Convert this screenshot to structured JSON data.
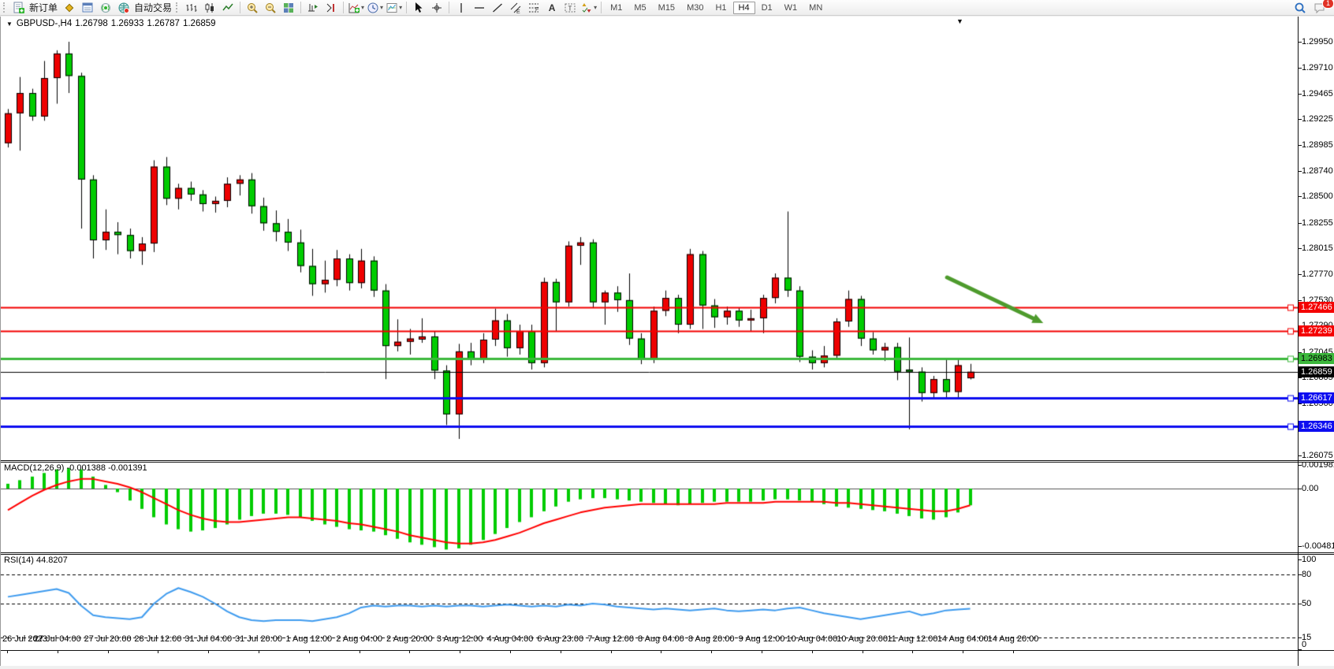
{
  "toolbar": {
    "new_order_label": "新订单",
    "autotrading_label": "自动交易",
    "timeframes": [
      "M1",
      "M5",
      "M15",
      "M30",
      "H1",
      "H4",
      "D1",
      "W1",
      "MN"
    ],
    "active_timeframe": "H4",
    "badge_count": "1",
    "icon_glyphs": {
      "text_tool": "A",
      "vline": "│",
      "hline": "─",
      "trendline": "╱",
      "caret": "▾"
    }
  },
  "chart_header": {
    "menu_glyph": "▼",
    "symbol_period": "GBPUSD-,H4",
    "open": "1.26798",
    "high": "1.26933",
    "low": "1.26787",
    "close": "1.26859",
    "shift_marker_glyph": "▼"
  },
  "panels": {
    "macd_label": "MACD(12,26,9)",
    "macd_values": "-0.001388 -0.001391",
    "rsi_label": "RSI(14)",
    "rsi_value": "44.8207"
  },
  "axes": {
    "price_ticks": [
      "1.29950",
      "1.29710",
      "1.29465",
      "1.29225",
      "1.28985",
      "1.28740",
      "1.28500",
      "1.28255",
      "1.28015",
      "1.27770",
      "1.27530",
      "1.27290",
      "1.27045",
      "1.26805",
      "1.26560",
      "1.26320",
      "1.26075"
    ],
    "macd_ticks": [
      {
        "label": "0.001981",
        "value": 0.001981
      },
      {
        "label": "0.00",
        "value": 0
      },
      {
        "label": "-0.00481",
        "value": -0.00481
      }
    ],
    "rsi_ticks": [
      {
        "label": "100",
        "value": 100,
        "dashed": false
      },
      {
        "label": "80",
        "value": 80,
        "dashed": true
      },
      {
        "label": "50",
        "value": 50,
        "dashed": true
      },
      {
        "label": "15",
        "value": 15,
        "dashed": true
      },
      {
        "label": "0",
        "value": 0,
        "dashed": false
      }
    ],
    "time_labels": [
      "26 Jul 2023",
      "27 Jul 04:00",
      "27 Jul 20:00",
      "28 Jul 12:00",
      "31 Jul 04:00",
      "31 Jul 20:00",
      "1 Aug 12:00",
      "2 Aug 04:00",
      "2 Aug 20:00",
      "3 Aug 12:00",
      "4 Aug 04:00",
      "6 Aug 23:00",
      "7 Aug 12:00",
      "8 Aug 04:00",
      "8 Aug 20:00",
      "9 Aug 12:00",
      "10 Aug 04:00",
      "10 Aug 20:00",
      "11 Aug 12:00",
      "14 Aug 04:00",
      "14 Aug 20:00"
    ]
  },
  "hlines": [
    {
      "price": 1.27466,
      "label": "1.27466",
      "color": "#f40000",
      "text_color": "#ffffff",
      "width": 2,
      "handle": true,
      "role": "resistance"
    },
    {
      "price": 1.27239,
      "label": "1.27239",
      "color": "#f40000",
      "text_color": "#ffffff",
      "width": 2,
      "handle": true,
      "role": "resistance"
    },
    {
      "price": 1.26983,
      "label": "1.26983",
      "color": "#3cb83c",
      "text_color": "#000000",
      "width": 3,
      "handle": true,
      "role": "level"
    },
    {
      "price": 1.26859,
      "label": "1.26859",
      "color": "#000000",
      "text_color": "#ffffff",
      "width": 1,
      "handle": false,
      "role": "bid"
    },
    {
      "price": 1.26617,
      "label": "1.26617",
      "color": "#0d0df0",
      "text_color": "#ffffff",
      "width": 3,
      "handle": true,
      "role": "support"
    },
    {
      "price": 1.26346,
      "label": "1.26346",
      "color": "#0d0df0",
      "text_color": "#ffffff",
      "width": 3,
      "handle": true,
      "role": "support"
    }
  ],
  "chart_data": {
    "type": "candlestick",
    "symbol": "GBPUSD-",
    "timeframe": "H4",
    "title": "GBPUSD-,H4 1.26798 1.26933 1.26787 1.26859",
    "price_range_visible": [
      1.26031,
      1.30186
    ],
    "up_color": "#ee0000",
    "down_color": "#00cc00",
    "outline_color": "#000000",
    "candles": [
      [
        1.29,
        1.2932,
        1.2896,
        1.2928
      ],
      [
        1.2928,
        1.2962,
        1.2893,
        1.2947
      ],
      [
        1.2947,
        1.2951,
        1.2921,
        1.2925
      ],
      [
        1.2925,
        1.2977,
        1.2921,
        1.2961
      ],
      [
        1.2961,
        1.2987,
        1.2937,
        1.2984
      ],
      [
        1.2984,
        1.2995,
        1.2947,
        1.2963
      ],
      [
        1.2963,
        1.2966,
        1.282,
        1.2866
      ],
      [
        1.2866,
        1.287,
        1.2792,
        1.2809
      ],
      [
        1.2809,
        1.2838,
        1.28,
        1.2817
      ],
      [
        1.2817,
        1.2826,
        1.2796,
        1.2814
      ],
      [
        1.2814,
        1.282,
        1.2792,
        1.2799
      ],
      [
        1.2799,
        1.2812,
        1.2786,
        1.2806
      ],
      [
        1.2806,
        1.2884,
        1.2798,
        1.2878
      ],
      [
        1.2878,
        1.2887,
        1.2842,
        1.2848
      ],
      [
        1.2848,
        1.2862,
        1.2838,
        1.2858
      ],
      [
        1.2858,
        1.2864,
        1.2846,
        1.2852
      ],
      [
        1.2852,
        1.2856,
        1.2836,
        1.2843
      ],
      [
        1.2843,
        1.285,
        1.2835,
        1.2846
      ],
      [
        1.2846,
        1.2868,
        1.284,
        1.2862
      ],
      [
        1.2862,
        1.287,
        1.2851,
        1.2866
      ],
      [
        1.2866,
        1.2872,
        1.2834,
        1.2841
      ],
      [
        1.2841,
        1.2849,
        1.2818,
        1.2825
      ],
      [
        1.2825,
        1.2837,
        1.2808,
        1.2817
      ],
      [
        1.2817,
        1.2829,
        1.2799,
        1.2807
      ],
      [
        1.2807,
        1.2819,
        1.2779,
        1.2785
      ],
      [
        1.2785,
        1.2801,
        1.2757,
        1.2768
      ],
      [
        1.2768,
        1.279,
        1.276,
        1.2772
      ],
      [
        1.2772,
        1.28,
        1.2766,
        1.2792
      ],
      [
        1.2792,
        1.2796,
        1.2762,
        1.2769
      ],
      [
        1.2769,
        1.2801,
        1.2764,
        1.279
      ],
      [
        1.279,
        1.2794,
        1.2756,
        1.2762
      ],
      [
        1.2762,
        1.2768,
        1.2679,
        1.271
      ],
      [
        1.271,
        1.2735,
        1.2705,
        1.2714
      ],
      [
        1.2714,
        1.2726,
        1.2702,
        1.2717
      ],
      [
        1.2716,
        1.2736,
        1.2713,
        1.2719
      ],
      [
        1.2719,
        1.2724,
        1.2679,
        1.2687
      ],
      [
        1.2687,
        1.2692,
        1.2636,
        1.2646
      ],
      [
        1.2646,
        1.2712,
        1.2623,
        1.2705
      ],
      [
        1.2705,
        1.2713,
        1.2692,
        1.2698
      ],
      [
        1.2698,
        1.2722,
        1.2694,
        1.2716
      ],
      [
        1.2716,
        1.2745,
        1.271,
        1.2734
      ],
      [
        1.2734,
        1.274,
        1.27,
        1.2708
      ],
      [
        1.2708,
        1.273,
        1.2702,
        1.2724
      ],
      [
        1.2724,
        1.273,
        1.2688,
        1.2694
      ],
      [
        1.2694,
        1.2774,
        1.269,
        1.277
      ],
      [
        1.277,
        1.2773,
        1.2724,
        1.2751
      ],
      [
        1.2751,
        1.2808,
        1.2747,
        1.2804
      ],
      [
        1.2804,
        1.2812,
        1.2786,
        1.2807
      ],
      [
        1.2807,
        1.281,
        1.2746,
        1.2751
      ],
      [
        1.2751,
        1.2762,
        1.273,
        1.276
      ],
      [
        1.276,
        1.2766,
        1.2742,
        1.2753
      ],
      [
        1.2753,
        1.2778,
        1.2711,
        1.2717
      ],
      [
        1.2717,
        1.2722,
        1.2693,
        1.2698
      ],
      [
        1.2698,
        1.2747,
        1.2694,
        1.2743
      ],
      [
        1.2743,
        1.2762,
        1.2738,
        1.2755
      ],
      [
        1.2755,
        1.2758,
        1.2722,
        1.273
      ],
      [
        1.273,
        1.2801,
        1.2726,
        1.2796
      ],
      [
        1.2796,
        1.2799,
        1.2726,
        1.2748
      ],
      [
        1.2748,
        1.2754,
        1.2727,
        1.2737
      ],
      [
        1.2737,
        1.2747,
        1.273,
        1.2743
      ],
      [
        1.2743,
        1.2746,
        1.2728,
        1.2734
      ],
      [
        1.2734,
        1.2744,
        1.2724,
        1.2736
      ],
      [
        1.2736,
        1.2758,
        1.2722,
        1.2755
      ],
      [
        1.2755,
        1.2778,
        1.275,
        1.2774
      ],
      [
        1.2774,
        1.2836,
        1.2756,
        1.2762
      ],
      [
        1.2762,
        1.2766,
        1.2695,
        1.27
      ],
      [
        1.27,
        1.2706,
        1.2688,
        1.2694
      ],
      [
        1.2694,
        1.271,
        1.269,
        1.2701
      ],
      [
        1.2701,
        1.2736,
        1.2698,
        1.2733
      ],
      [
        1.2733,
        1.2762,
        1.2728,
        1.2754
      ],
      [
        1.2754,
        1.2757,
        1.271,
        1.2717
      ],
      [
        1.2717,
        1.2723,
        1.2702,
        1.2706
      ],
      [
        1.2706,
        1.2713,
        1.2696,
        1.2709
      ],
      [
        1.2709,
        1.2713,
        1.2678,
        1.2686
      ],
      [
        1.2688,
        1.2718,
        1.2632,
        1.2686
      ],
      [
        1.2686,
        1.269,
        1.2658,
        1.2666
      ],
      [
        1.2666,
        1.2682,
        1.2661,
        1.2679
      ],
      [
        1.2679,
        1.2698,
        1.266,
        1.2667
      ],
      [
        1.2667,
        1.2697,
        1.2662,
        1.2692
      ],
      [
        1.26798,
        1.26933,
        1.26787,
        1.26859
      ]
    ],
    "indicators": {
      "macd": {
        "params": "12,26,9",
        "current_values": [
          -0.001388,
          -0.001391
        ],
        "histogram_color": "#00cc00",
        "signal_color": "#ff0000",
        "range": [
          -0.00534,
          0.00224
        ],
        "histogram": [
          0.0004,
          0.0007,
          0.001,
          0.0013,
          0.0016,
          0.0017,
          0.0016,
          0.001,
          0.0003,
          -0.0003,
          -0.001,
          -0.0017,
          -0.0024,
          -0.003,
          -0.0034,
          -0.0036,
          -0.0035,
          -0.0033,
          -0.003,
          -0.0026,
          -0.0023,
          -0.0021,
          -0.0021,
          -0.0022,
          -0.0024,
          -0.0027,
          -0.003,
          -0.0032,
          -0.0034,
          -0.0035,
          -0.0036,
          -0.0039,
          -0.0042,
          -0.0045,
          -0.0047,
          -0.0049,
          -0.0051,
          -0.005,
          -0.0047,
          -0.0043,
          -0.0038,
          -0.0033,
          -0.0028,
          -0.0024,
          -0.0019,
          -0.0015,
          -0.0011,
          -0.0009,
          -0.0008,
          -0.0008,
          -0.0009,
          -0.001,
          -0.0011,
          -0.0012,
          -0.0013,
          -0.0014,
          -0.0013,
          -0.0012,
          -0.0011,
          -0.0011,
          -0.0011,
          -0.0011,
          -0.001,
          -0.0009,
          -0.0009,
          -0.001,
          -0.0011,
          -0.0013,
          -0.0015,
          -0.0016,
          -0.0017,
          -0.0018,
          -0.0019,
          -0.0021,
          -0.0023,
          -0.0025,
          -0.0026,
          -0.0024,
          -0.002,
          -0.0014
        ],
        "signal": [
          -0.0018,
          -0.0012,
          -0.0006,
          -0.0001,
          0.0003,
          0.0006,
          0.0008,
          0.0008,
          0.0006,
          0.0004,
          0.0001,
          -0.0003,
          -0.0008,
          -0.0013,
          -0.0018,
          -0.0022,
          -0.0025,
          -0.0027,
          -0.0028,
          -0.0028,
          -0.0027,
          -0.0026,
          -0.0025,
          -0.0024,
          -0.0024,
          -0.0025,
          -0.0026,
          -0.0027,
          -0.0029,
          -0.003,
          -0.0032,
          -0.0034,
          -0.0036,
          -0.0039,
          -0.0041,
          -0.0043,
          -0.0045,
          -0.0046,
          -0.0046,
          -0.0045,
          -0.0043,
          -0.004,
          -0.0037,
          -0.0033,
          -0.0029,
          -0.0026,
          -0.0023,
          -0.002,
          -0.0018,
          -0.0016,
          -0.0015,
          -0.0014,
          -0.0013,
          -0.0013,
          -0.0013,
          -0.0013,
          -0.0013,
          -0.0013,
          -0.0013,
          -0.0012,
          -0.0012,
          -0.0012,
          -0.0012,
          -0.0011,
          -0.0011,
          -0.0011,
          -0.0011,
          -0.0011,
          -0.0012,
          -0.0012,
          -0.0013,
          -0.0014,
          -0.0015,
          -0.0016,
          -0.0017,
          -0.0018,
          -0.0019,
          -0.0019,
          -0.0017,
          -0.0014
        ]
      },
      "rsi": {
        "params": "14",
        "current_value": 44.8207,
        "color": "#3e9bef",
        "levels": [
          80,
          50,
          15
        ],
        "range": [
          0,
          100
        ],
        "values": [
          57,
          59,
          61,
          63,
          65,
          61,
          48,
          38,
          36,
          35,
          34,
          36,
          50,
          60,
          66,
          62,
          57,
          50,
          42,
          36,
          33,
          32,
          33,
          33,
          33,
          32,
          34,
          36,
          40,
          46,
          48,
          47,
          48,
          48,
          47,
          48,
          47,
          48,
          48,
          47,
          48,
          49,
          48,
          47,
          48,
          47,
          49,
          48,
          50,
          49,
          47,
          46,
          45,
          44,
          45,
          44,
          43,
          44,
          45,
          43,
          42,
          43,
          44,
          43,
          45,
          46,
          43,
          40,
          38,
          36,
          34,
          36,
          38,
          40,
          42,
          38,
          40,
          43,
          44,
          44.82
        ]
      }
    },
    "annotations": [
      {
        "type": "arrow",
        "color": "#4e9b2d",
        "width": 5,
        "from": {
          "bar": 77.1,
          "price": 1.27743
        },
        "to": {
          "bar": 85.0,
          "price": 1.27315
        }
      }
    ]
  }
}
